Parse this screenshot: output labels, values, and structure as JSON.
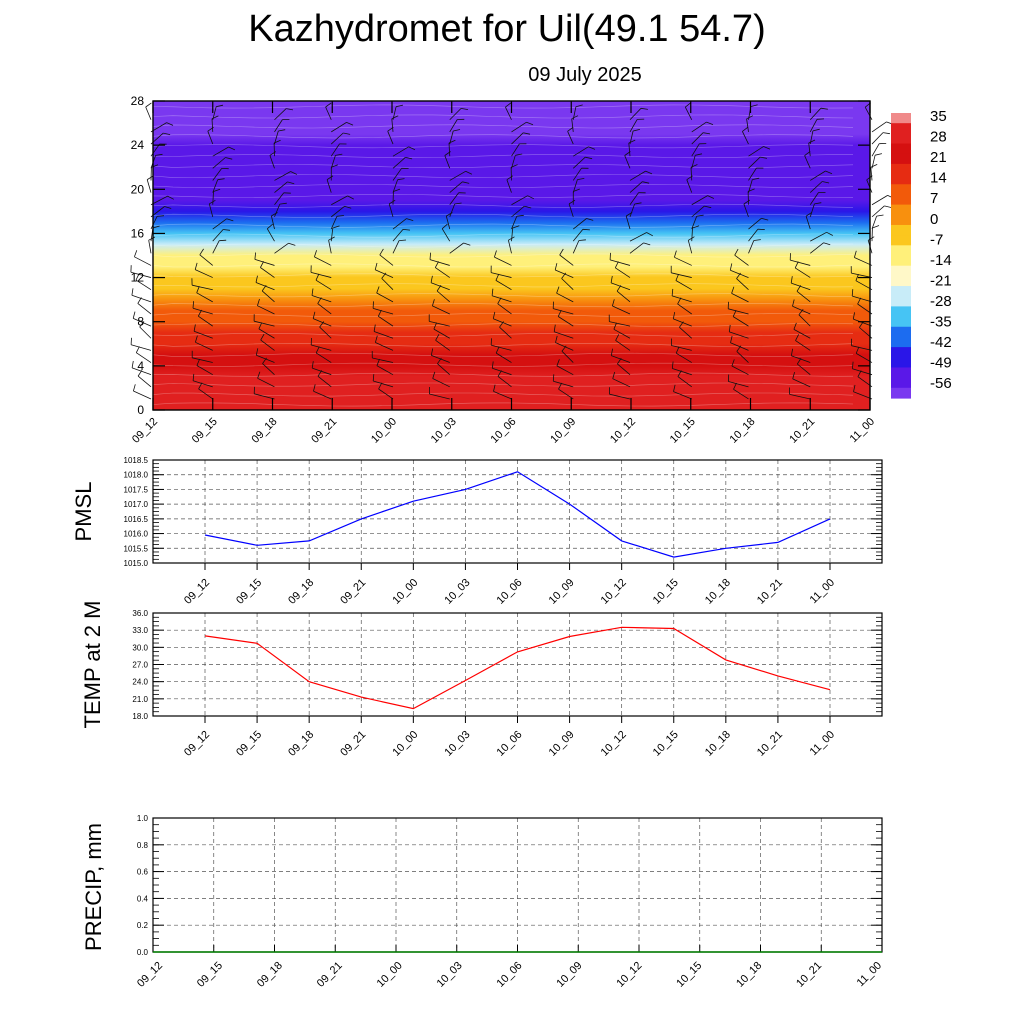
{
  "title": "Kazhydromet for Uil(49.1 54.7)",
  "subtitle": "09 July 2025",
  "chart_data": [
    {
      "type": "heatmap",
      "name": "temperature-height section",
      "y_ticks": [
        "0",
        "4",
        "8",
        "12",
        "16",
        "20",
        "24",
        "28"
      ],
      "ylim": [
        0,
        28
      ],
      "x_ticks": [
        "09_12",
        "09_15",
        "09_18",
        "09_21",
        "10_00",
        "10_03",
        "10_06",
        "10_09",
        "10_12",
        "10_15",
        "10_18",
        "10_21",
        "11_00"
      ],
      "colorbar_labels": [
        "35",
        "28",
        "21",
        "14",
        "7",
        "0",
        "-7",
        "-14",
        "-21",
        "-28",
        "-35",
        "-42",
        "-49",
        "-56"
      ],
      "colorbar_range": [
        -60,
        38
      ],
      "color_stops": [
        "#f08a8a",
        "#e02020",
        "#d51010",
        "#e62c12",
        "#f25a0a",
        "#f8900e",
        "#fbc71e",
        "#fff07a",
        "#fff8c8",
        "#c8ecf8",
        "#46c4f4",
        "#1c6cf0",
        "#2a16e8",
        "#5a18e8",
        "#7a38f0"
      ],
      "temperature_profile": [
        {
          "h": 0,
          "t": 34
        },
        {
          "h": 2,
          "t": 31
        },
        {
          "h": 4,
          "t": 25
        },
        {
          "h": 6,
          "t": 19
        },
        {
          "h": 8,
          "t": 11
        },
        {
          "h": 10,
          "t": 3
        },
        {
          "h": 12,
          "t": -5
        },
        {
          "h": 14,
          "t": -14
        },
        {
          "h": 16,
          "t": -30
        },
        {
          "h": 18,
          "t": -46
        },
        {
          "h": 20,
          "t": -56
        },
        {
          "h": 24,
          "t": -56
        },
        {
          "h": 28,
          "t": -60
        }
      ],
      "wind_barbs": "black"
    },
    {
      "type": "line",
      "ylabel": "PMSL",
      "y_ticks": [
        "1015.0",
        "1015.5",
        "1016.0",
        "1016.5",
        "1017.0",
        "1017.5",
        "1018.0",
        "1018.5"
      ],
      "ylim": [
        1015.0,
        1018.5
      ],
      "x_ticks": [
        "09_12",
        "09_15",
        "09_18",
        "09_21",
        "10_00",
        "10_03",
        "10_06",
        "10_09",
        "10_12",
        "10_15",
        "10_18",
        "10_21",
        "11_00"
      ],
      "series": [
        {
          "values": [
            1015.95,
            1015.6,
            1015.75,
            1016.5,
            1017.1,
            1017.5,
            1018.1,
            1017.0,
            1015.75,
            1015.2,
            1015.5,
            1015.7,
            1016.5
          ],
          "color": "#0000ff"
        }
      ],
      "grid": true
    },
    {
      "type": "line",
      "ylabel": "TEMP at 2 M",
      "y_ticks": [
        "18.0",
        "21.0",
        "24.0",
        "27.0",
        "30.0",
        "33.0",
        "36.0"
      ],
      "ylim": [
        18.0,
        36.0
      ],
      "x_ticks": [
        "09_12",
        "09_15",
        "09_18",
        "09_21",
        "10_00",
        "10_03",
        "10_06",
        "10_09",
        "10_12",
        "10_15",
        "10_18",
        "10_21",
        "11_00"
      ],
      "series": [
        {
          "values": [
            32.0,
            30.7,
            24.0,
            21.3,
            19.3,
            24.2,
            29.2,
            31.9,
            33.5,
            33.3,
            27.8,
            25.0,
            22.6
          ],
          "color": "#ff0000"
        }
      ],
      "grid": true
    },
    {
      "type": "line",
      "ylabel": "PRECIP, mm",
      "y_ticks": [
        "0.0",
        "0.2",
        "0.4",
        "0.6",
        "0.8",
        "1.0"
      ],
      "ylim": [
        0,
        1.0
      ],
      "x_ticks": [
        "09_12",
        "09_15",
        "09_18",
        "09_21",
        "10_00",
        "10_03",
        "10_06",
        "10_09",
        "10_12",
        "10_15",
        "10_18",
        "10_21",
        "11_00"
      ],
      "series": [
        {
          "values": [
            0,
            0,
            0,
            0,
            0,
            0,
            0,
            0,
            0,
            0,
            0,
            0,
            0
          ],
          "color": "#008000"
        }
      ],
      "grid": true
    }
  ]
}
